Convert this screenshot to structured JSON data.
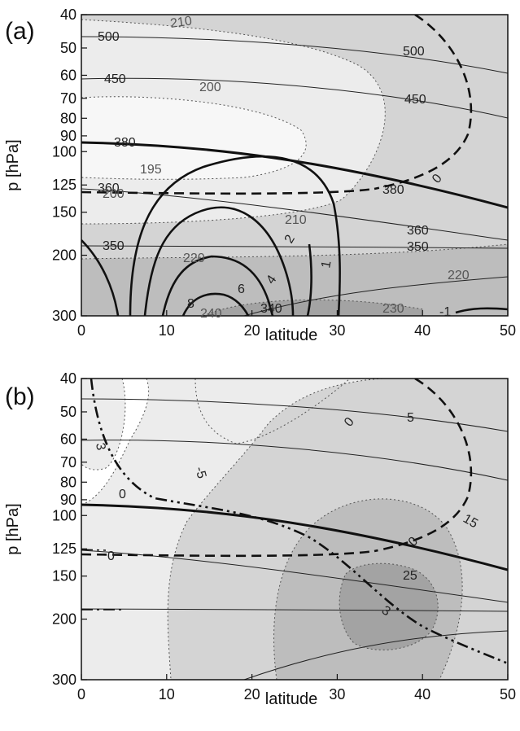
{
  "chart_data": [
    {
      "panel_label": "(a)",
      "type": "contour",
      "xlabel": "latitude",
      "ylabel": "p [hPa]",
      "xlim": [
        0,
        50
      ],
      "ylim": [
        300,
        40
      ],
      "y_scale": "log",
      "x_ticks": [
        "0",
        "10",
        "20",
        "30",
        "40",
        "50"
      ],
      "y_ticks": [
        "40",
        "50",
        "60",
        "70",
        "80",
        "90",
        "100",
        "125",
        "150",
        "200",
        "300"
      ],
      "grid": false,
      "temperature_contour_labels": [
        "210",
        "200",
        "195",
        "200",
        "210",
        "220",
        "220",
        "230",
        "240"
      ],
      "theta_contour_labels": [
        "500",
        "500",
        "450",
        "450",
        "380",
        "380",
        "360",
        "360",
        "350",
        "350",
        "340"
      ],
      "solid_contour_labels": [
        "2",
        "4",
        "6",
        "8",
        "1",
        "-1"
      ],
      "dashed_contour_label": "0"
    },
    {
      "panel_label": "(b)",
      "type": "contour",
      "xlabel": "latitude",
      "ylabel": "p [hPa]",
      "xlim": [
        0,
        50
      ],
      "ylim": [
        300,
        40
      ],
      "y_scale": "log",
      "x_ticks": [
        "0",
        "10",
        "20",
        "30",
        "40",
        "50"
      ],
      "y_ticks": [
        "40",
        "50",
        "60",
        "70",
        "80",
        "90",
        "100",
        "125",
        "150",
        "200",
        "300"
      ],
      "grid": false,
      "shaded_contour_labels": [
        "-5",
        "0",
        "5",
        "15",
        "25"
      ],
      "dashdot_contour_labels": [
        "3",
        "0",
        "3"
      ],
      "dashed_contour_labels": [
        "0",
        "0"
      ]
    }
  ],
  "colors": {
    "shade_light": "#ececec",
    "shade_mid": "#d4d4d4",
    "shade_dark": "#bdbdbd",
    "shade_darkest": "#a3a3a3",
    "line": "#111111"
  }
}
